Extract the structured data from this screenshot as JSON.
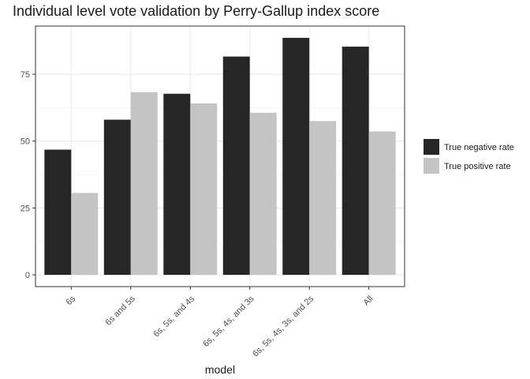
{
  "chart_data": {
    "type": "bar",
    "title": "Individual level vote validation by Perry-Gallup index score",
    "xlabel": "model",
    "ylabel": "",
    "categories": [
      "6s",
      "6s and 5s",
      "6s, 5s, and 4s",
      "6s, 5s, 4s, and 3s",
      "6s, 5s, 4s, 3s, and 2s",
      "All"
    ],
    "series": [
      {
        "name": "True negative rate",
        "color": "#262626",
        "values": [
          46.8,
          58.0,
          67.7,
          81.6,
          88.6,
          85.3
        ]
      },
      {
        "name": "True positive rate",
        "color": "#c4c4c4",
        "values": [
          30.6,
          68.3,
          64.1,
          60.6,
          57.5,
          53.6
        ]
      }
    ],
    "ylim": [
      -4.4,
      93.0
    ],
    "yticks": [
      0,
      25,
      50,
      75
    ],
    "grid": true,
    "legend_position": "right",
    "panel_background": "#ffffff",
    "grid_color": "#ebebeb"
  }
}
